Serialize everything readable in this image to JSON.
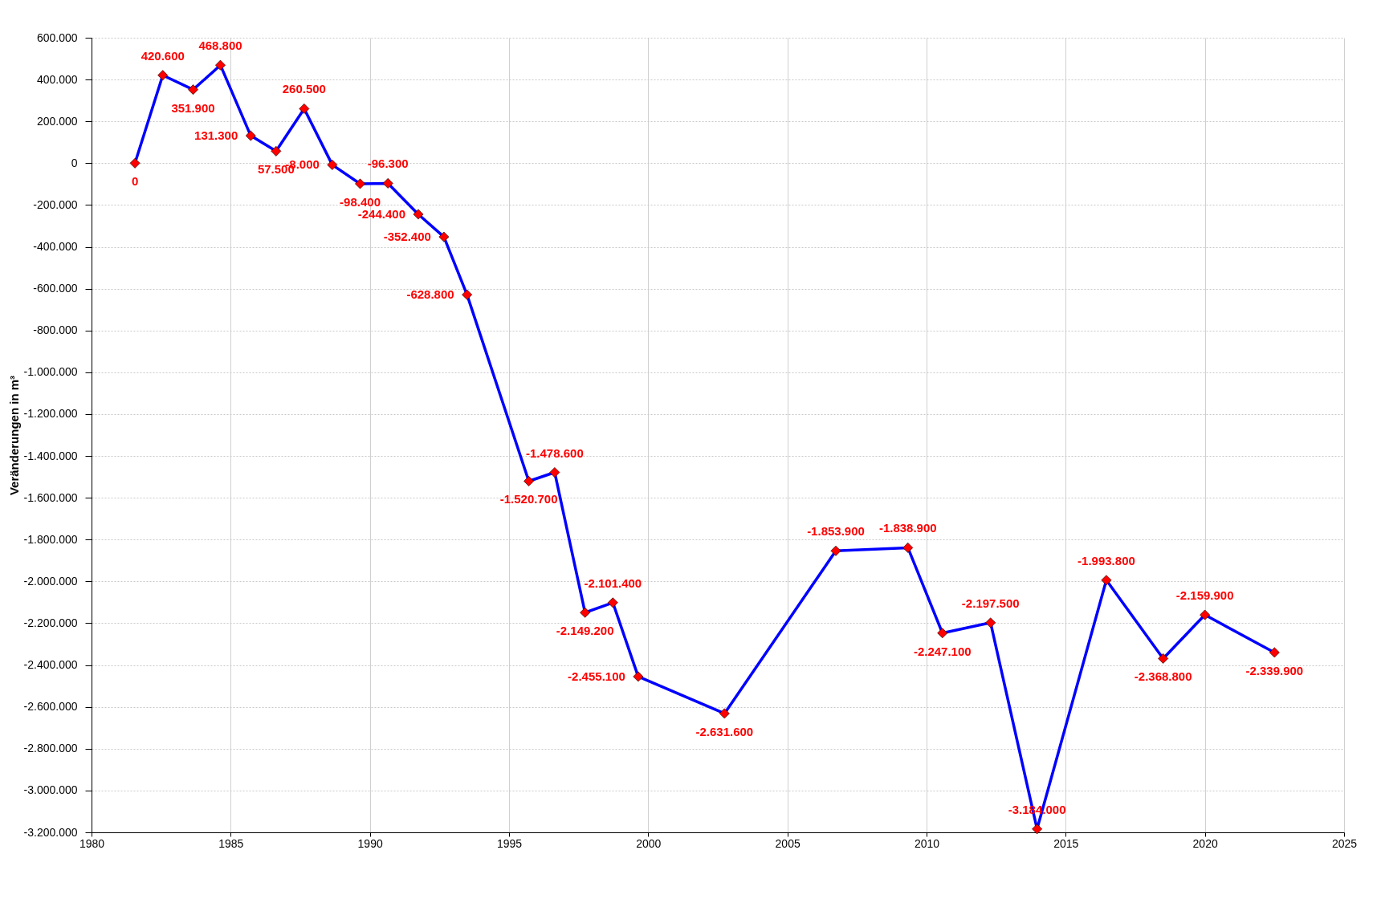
{
  "chart_data": {
    "type": "line",
    "ylabel": "Veränderungen in m³",
    "x": [
      1981.56,
      1982.56,
      1983.65,
      1984.63,
      1985.72,
      1986.63,
      1987.64,
      1988.65,
      1989.65,
      1990.65,
      1991.74,
      1992.66,
      1993.49,
      1995.71,
      1996.64,
      1997.73,
      1998.73,
      1999.64,
      2002.74,
      2006.74,
      2009.33,
      2010.57,
      2012.3,
      2013.97,
      2016.46,
      2018.5,
      2020.0,
      2022.5
    ],
    "series": [
      {
        "color": "#0000ff",
        "values": [
          0,
          420600,
          351900,
          468800,
          131300,
          57500,
          260500,
          -8000,
          -98400,
          -96300,
          -244400,
          -352400,
          -628800,
          -1520700,
          -1478600,
          -2149200,
          -2101400,
          -2455100,
          -2631600,
          -1853900,
          -1838900,
          -2247100,
          -2197500,
          -3184000,
          -1993800,
          -2368800,
          -2159900,
          -2339900
        ],
        "colors": [
          "#ff0000",
          "#ff0000",
          "#ff0000",
          "#ff0000",
          "#ff0000",
          "#ff0000",
          "#ff0000",
          "#ff0000",
          "#ff0000",
          "#ff0000",
          "#ff0000",
          "#ff0000",
          "#ff0000",
          "#ff0000",
          "#ff0000",
          "#ff0000",
          "#ff0000",
          "#ff0000",
          "#ff0000",
          "#ff0000",
          "#ff0000",
          "#ff0000",
          "#ff0000",
          "#ff0000",
          "#ff0000",
          "#ff0000",
          "#ff0000",
          "#ff0000"
        ],
        "value_labels": [
          "0",
          "420.600",
          "351.900",
          "468.800",
          "131.300",
          "57.500",
          "260.500",
          "-8.000",
          "-98.400",
          "-96.300",
          "-244.400",
          "-352.400",
          "-628.800",
          "-1.520.700",
          "-1.478.600",
          "-2.149.200",
          "-2.101.400",
          "-2.455.100",
          "-2.631.600",
          "-1.853.900",
          "-1.838.900",
          "-2.247.100",
          "-2.197.500",
          "-3.184.000",
          "-1.993.800",
          "-2.368.800",
          "-2.159.900",
          "-2.339.900"
        ]
      }
    ],
    "marker": "diamond",
    "xlim": [
      1980,
      2025
    ],
    "xticks": [
      1980,
      1985,
      1990,
      1995,
      2000,
      2005,
      2010,
      2015,
      2020,
      2025
    ],
    "ylim": [
      -3200000,
      600000
    ],
    "yticks": [
      {
        "value": 600000,
        "label": "600.000"
      },
      {
        "value": 400000,
        "label": "400.000"
      },
      {
        "value": 200000,
        "label": "200.000"
      },
      {
        "value": 0,
        "label": "0"
      },
      {
        "value": -200000,
        "label": "-200.000"
      },
      {
        "value": -400000,
        "label": "-400.000"
      },
      {
        "value": -600000,
        "label": "-600.000"
      },
      {
        "value": -800000,
        "label": "-800.000"
      },
      {
        "value": -1000000,
        "label": "-1.000.000"
      },
      {
        "value": -1200000,
        "label": "-1.200.000"
      },
      {
        "value": -1400000,
        "label": "-1.400.000"
      },
      {
        "value": -1600000,
        "label": "-1.600.000"
      },
      {
        "value": -1800000,
        "label": "-1.800.000"
      },
      {
        "value": -2000000,
        "label": "-2.000.000"
      },
      {
        "value": -2200000,
        "label": "-2.200.000"
      },
      {
        "value": -2400000,
        "label": "-2.400.000"
      },
      {
        "value": -2600000,
        "label": "-2.600.000"
      },
      {
        "value": -2800000,
        "label": "-2.800.000"
      },
      {
        "value": -3000000,
        "label": "-3.000.000"
      },
      {
        "value": -3200000,
        "label": "-3.200.000"
      }
    ],
    "grid": true,
    "line_style": "solid"
  }
}
